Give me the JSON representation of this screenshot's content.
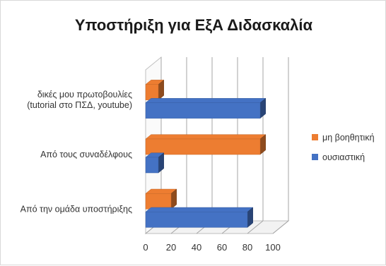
{
  "chart_data": {
    "type": "bar",
    "orientation": "horizontal",
    "style": "3d-clustered",
    "title": "Υποστήριξη για ΕξΑ Διδασκαλία",
    "categories": [
      [
        "δικές μου πρωτοβουλίες",
        "(tutorial στο ΠΣΔ, youtube)"
      ],
      [
        "Από τους συναδέλφους"
      ],
      [
        "Από την ομάδα υποστήριξης"
      ]
    ],
    "series": [
      {
        "name": "μη βοηθητική",
        "color": "#ed7d31",
        "values": [
          10,
          90,
          20
        ]
      },
      {
        "name": "ουσιαστική",
        "color": "#4472c4",
        "values": [
          90,
          10,
          80
        ]
      }
    ],
    "xlim": [
      0,
      100
    ],
    "xticks": [
      0,
      20,
      40,
      60,
      80,
      100
    ],
    "grid": true,
    "legend_position": "right"
  }
}
